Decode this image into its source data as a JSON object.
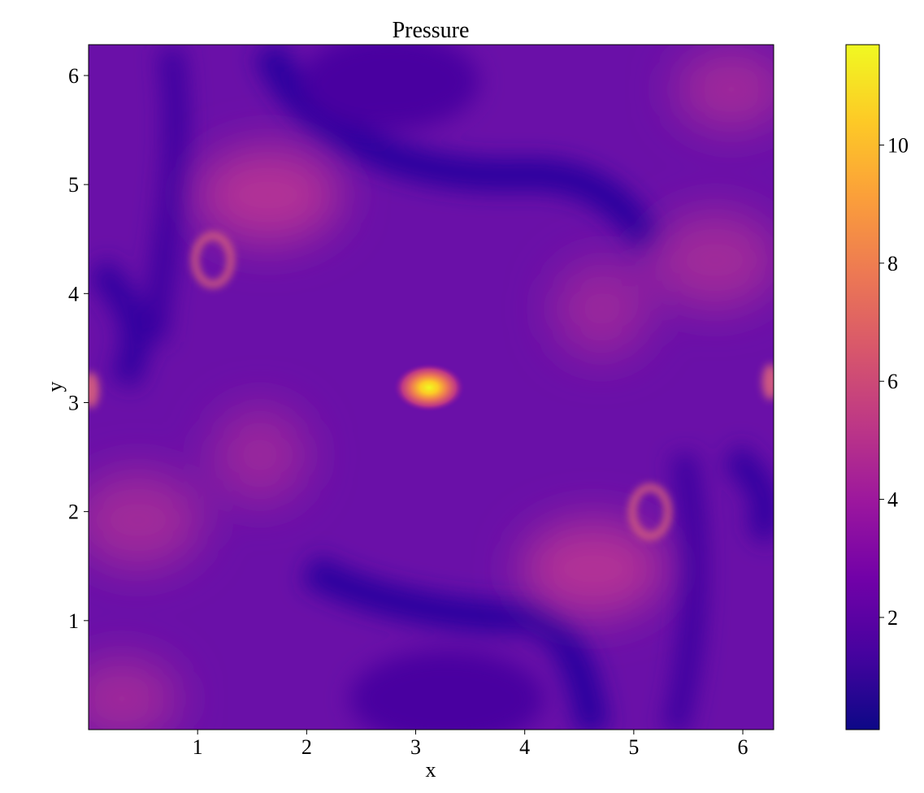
{
  "chart_data": [
    {
      "type": "heatmap",
      "title": "Pressure",
      "xlabel": "x",
      "ylabel": "y",
      "xlim": [
        0,
        6.283
      ],
      "ylim": [
        0,
        6.283
      ],
      "xticks": [
        1,
        2,
        3,
        4,
        5,
        6
      ],
      "yticks": [
        1,
        2,
        3,
        4,
        5,
        6
      ],
      "xtick_labels": [
        "1",
        "2",
        "3",
        "4",
        "5",
        "6"
      ],
      "ytick_labels": [
        "1",
        "2",
        "3",
        "4",
        "5",
        "6"
      ],
      "colormap": "plasma",
      "grid": false,
      "features": [
        {
          "x": 3.14,
          "y": 3.14,
          "value": 11.5
        },
        {
          "x": 1.1,
          "y": 4.3,
          "value": 6.0
        },
        {
          "x": 5.15,
          "y": 1.95,
          "value": 6.0
        },
        {
          "x": 1.7,
          "y": 5.1,
          "value": 5.5
        },
        {
          "x": 4.6,
          "y": 1.3,
          "value": 5.5
        },
        {
          "x": 0.02,
          "y": 3.14,
          "value": 6.5
        },
        {
          "x": 6.26,
          "y": 3.14,
          "value": 6.5
        },
        {
          "x": 3.6,
          "y": 5.05,
          "value": 0.6
        },
        {
          "x": 2.8,
          "y": 1.3,
          "value": 0.6
        },
        {
          "x": 2.5,
          "y": 6.0,
          "value": 1.0
        },
        {
          "x": 3.9,
          "y": 0.3,
          "value": 1.0
        }
      ],
      "background_value": 2.8
    },
    {
      "type": "colorbar",
      "colormap": "plasma",
      "vlim": [
        0.1,
        11.7
      ],
      "ticks": [
        2,
        4,
        6,
        8,
        10
      ],
      "tick_labels": [
        "2",
        "4",
        "6",
        "8",
        "10"
      ]
    }
  ],
  "colors": {
    "plasma": [
      "#0d0887",
      "#46039f",
      "#7201a8",
      "#9c179e",
      "#bd3786",
      "#d8576b",
      "#ed7953",
      "#fb9f3a",
      "#fdca26",
      "#f0f921"
    ],
    "field_base": "#6a0fa8",
    "field_dark": "#2a06a0",
    "field_light": "#b03296"
  }
}
